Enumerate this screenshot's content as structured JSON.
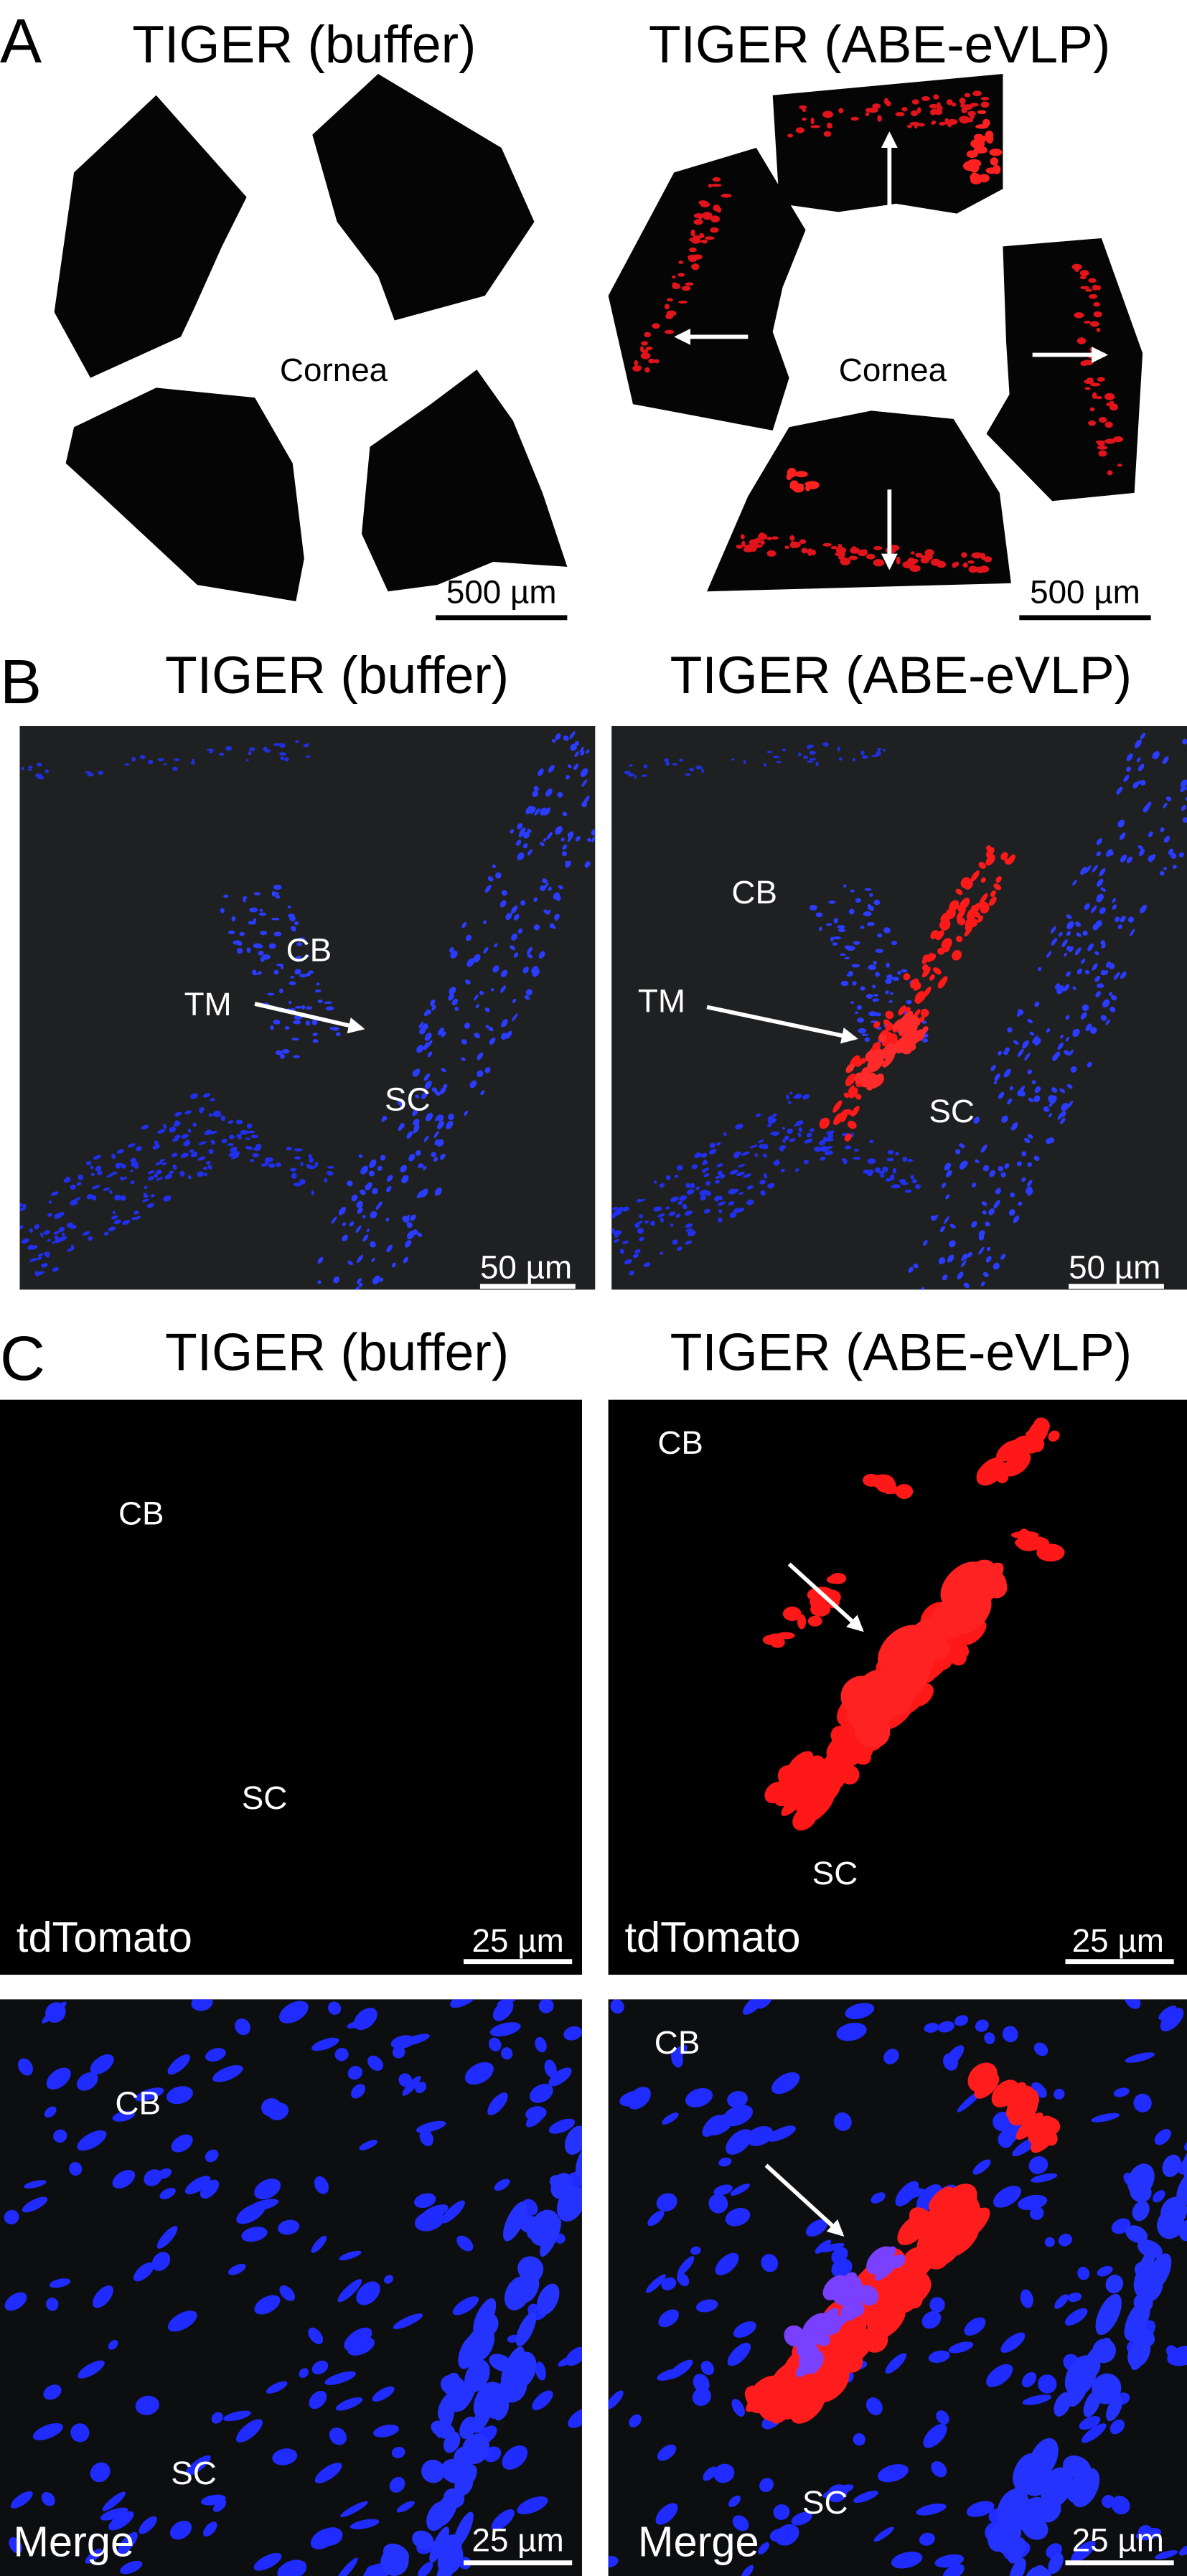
{
  "panel_a": {
    "letter": "A",
    "images": [
      {
        "title": "TIGER (buffer)",
        "label": "Cornea",
        "scale_bar": "500 µm"
      },
      {
        "title": "TIGER (ABE-eVLP)",
        "label": "Cornea",
        "scale_bar": "500 µm"
      }
    ]
  },
  "panel_b": {
    "letter": "B",
    "images": [
      {
        "title": "TIGER (buffer)",
        "labels": [
          "CB",
          "TM",
          "SC"
        ],
        "scale_bar": "50 µm"
      },
      {
        "title": "TIGER (ABE-eVLP)",
        "labels": [
          "CB",
          "TM",
          "SC"
        ],
        "scale_bar": "50 µm"
      }
    ]
  },
  "panel_c": {
    "letter": "C",
    "titles": [
      "TIGER (buffer)",
      "TIGER (ABE-eVLP)"
    ],
    "images": [
      {
        "labels": [
          "CB",
          "SC"
        ],
        "channel": "tdTomato",
        "scale_bar": "25 µm"
      },
      {
        "labels": [
          "CB",
          "SC"
        ],
        "channel": "tdTomato",
        "scale_bar": "25 µm"
      },
      {
        "labels": [
          "CB",
          "SC"
        ],
        "channel": "Merge",
        "scale_bar": "25 µm"
      },
      {
        "labels": [
          "CB",
          "SC"
        ],
        "channel": "Merge",
        "scale_bar": "25 µm"
      }
    ]
  }
}
